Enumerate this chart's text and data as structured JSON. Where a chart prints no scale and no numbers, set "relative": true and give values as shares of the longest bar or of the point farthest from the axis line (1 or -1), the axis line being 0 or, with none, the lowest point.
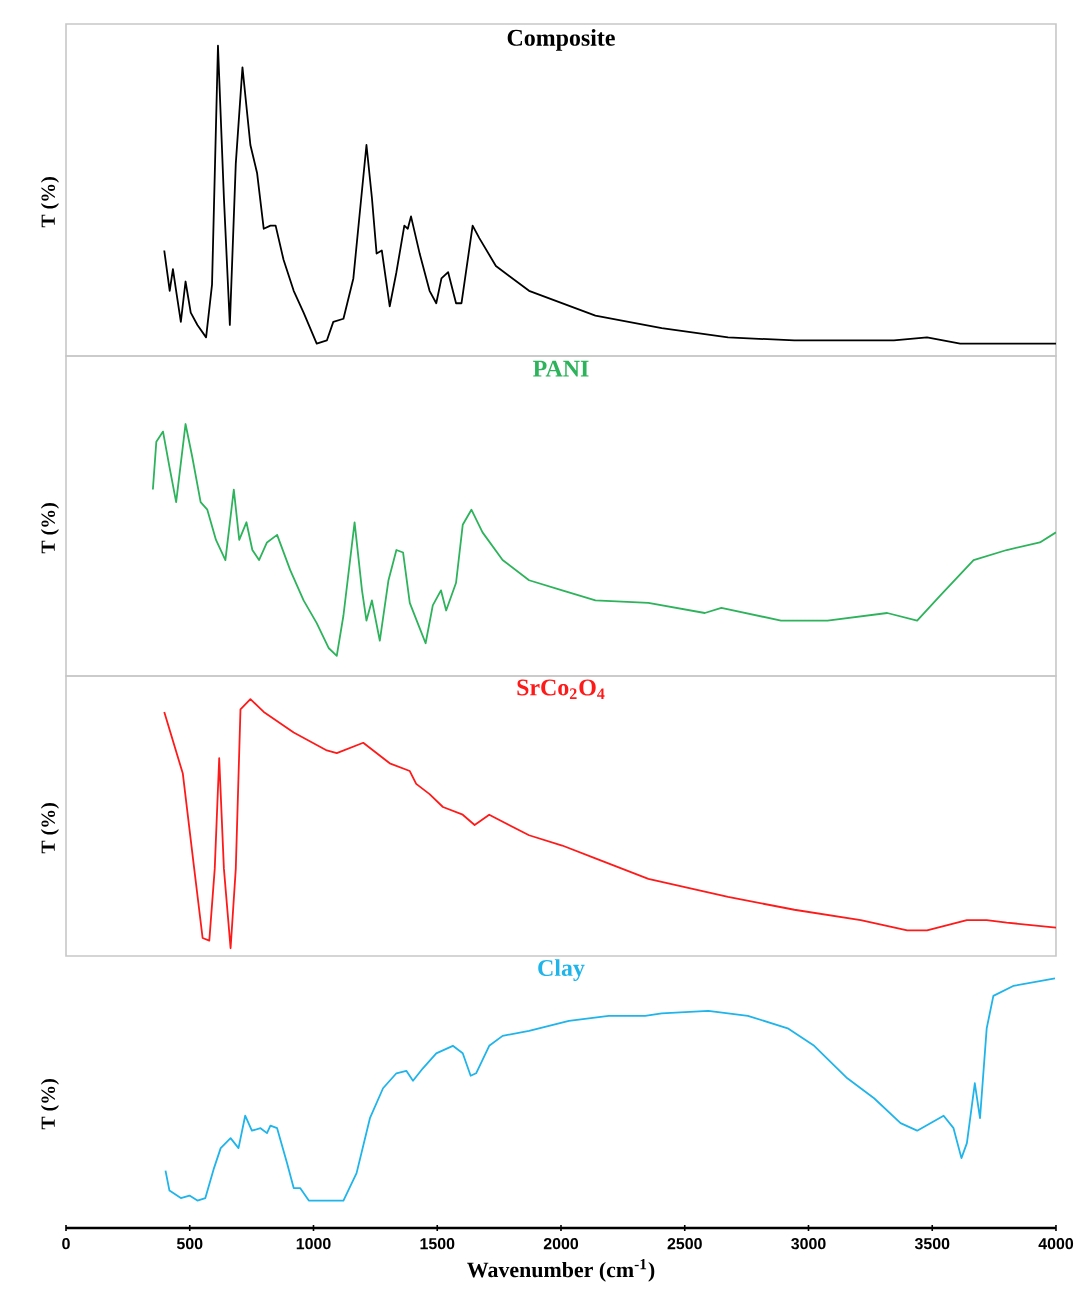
{
  "chart_data": [
    {
      "type": "line",
      "title": "Composite",
      "ylabel": "T (%)",
      "relative": true,
      "xlim": [
        0,
        4000
      ],
      "tick_labels": false,
      "x": [
        397,
        419,
        432,
        445,
        464,
        483,
        504,
        531,
        566,
        590,
        614,
        638,
        662,
        686,
        713,
        745,
        772,
        799,
        826,
        847,
        879,
        920,
        960,
        1013,
        1054,
        1080,
        1121,
        1161,
        1193,
        1214,
        1236,
        1255,
        1276,
        1308,
        1335,
        1367,
        1381,
        1394,
        1429,
        1469,
        1496,
        1517,
        1544,
        1576,
        1598,
        1616,
        1643,
        1670,
        1737,
        1871,
        2139,
        2407,
        2675,
        2943,
        3211,
        3345,
        3479,
        3613,
        3747,
        4000
      ],
      "series": [
        {
          "color": "#000000",
          "values": [
            0.34,
            0.21,
            0.28,
            0.21,
            0.11,
            0.24,
            0.14,
            0.1,
            0.06,
            0.23,
            1.0,
            0.51,
            0.1,
            0.62,
            0.93,
            0.68,
            0.59,
            0.41,
            0.42,
            0.42,
            0.31,
            0.21,
            0.14,
            0.04,
            0.05,
            0.11,
            0.12,
            0.25,
            0.51,
            0.68,
            0.51,
            0.33,
            0.34,
            0.16,
            0.27,
            0.42,
            0.41,
            0.45,
            0.33,
            0.21,
            0.17,
            0.25,
            0.27,
            0.17,
            0.17,
            0.27,
            0.42,
            0.38,
            0.29,
            0.21,
            0.13,
            0.09,
            0.06,
            0.05,
            0.05,
            0.05,
            0.06,
            0.04,
            0.04,
            0.04
          ]
        }
      ]
    },
    {
      "type": "line",
      "title": "PANI",
      "ylabel": "T (%)",
      "relative": true,
      "xlim": [
        0,
        4000
      ],
      "tick_labels": false,
      "x": [
        351,
        365,
        392,
        418,
        445,
        483,
        510,
        544,
        571,
        606,
        644,
        678,
        700,
        729,
        753,
        780,
        812,
        853,
        906,
        960,
        1013,
        1062,
        1094,
        1121,
        1166,
        1196,
        1214,
        1236,
        1268,
        1303,
        1335,
        1362,
        1389,
        1429,
        1453,
        1482,
        1515,
        1536,
        1576,
        1603,
        1638,
        1683,
        1764,
        1871,
        2005,
        2139,
        2353,
        2581,
        2648,
        2889,
        3077,
        3318,
        3439,
        3533,
        3667,
        3801,
        3935,
        4000
      ],
      "series": [
        {
          "color": "#2db35b",
          "values": [
            0.74,
            0.93,
            0.97,
            0.83,
            0.69,
            1.0,
            0.87,
            0.69,
            0.66,
            0.54,
            0.46,
            0.74,
            0.54,
            0.61,
            0.5,
            0.46,
            0.53,
            0.56,
            0.42,
            0.3,
            0.21,
            0.11,
            0.08,
            0.24,
            0.61,
            0.34,
            0.22,
            0.3,
            0.14,
            0.38,
            0.5,
            0.49,
            0.29,
            0.19,
            0.13,
            0.28,
            0.34,
            0.26,
            0.37,
            0.6,
            0.66,
            0.57,
            0.46,
            0.38,
            0.34,
            0.3,
            0.29,
            0.25,
            0.27,
            0.22,
            0.22,
            0.25,
            0.22,
            0.32,
            0.46,
            0.5,
            0.53,
            0.57
          ]
        }
      ]
    },
    {
      "type": "line",
      "title": "SrCo$_{2}$O$_{4}$",
      "ylabel": "T (%)",
      "relative": true,
      "xlim": [
        0,
        4000
      ],
      "tick_labels": false,
      "x": [
        397,
        472,
        518,
        552,
        579,
        601,
        619,
        638,
        665,
        686,
        705,
        745,
        799,
        920,
        1054,
        1094,
        1201,
        1308,
        1389,
        1415,
        1469,
        1523,
        1603,
        1651,
        1710,
        1871,
        2005,
        2139,
        2353,
        2675,
        2943,
        3211,
        3399,
        3479,
        3640,
        3720,
        3801,
        4000
      ],
      "series": [
        {
          "color": "#ff1a1a",
          "values": [
            0.95,
            0.71,
            0.34,
            0.07,
            0.06,
            0.34,
            0.77,
            0.34,
            0.03,
            0.34,
            0.96,
            1.0,
            0.95,
            0.87,
            0.8,
            0.79,
            0.83,
            0.75,
            0.72,
            0.67,
            0.63,
            0.58,
            0.55,
            0.51,
            0.55,
            0.47,
            0.43,
            0.38,
            0.3,
            0.23,
            0.18,
            0.14,
            0.1,
            0.1,
            0.14,
            0.14,
            0.13,
            0.11
          ]
        }
      ]
    },
    {
      "type": "line",
      "title": "Clay",
      "ylabel": "T (%)",
      "xlabel": "Wavenumber (cm$^{-1}$)",
      "relative": true,
      "xlim": [
        0,
        4000
      ],
      "xticks": [
        0,
        500,
        1000,
        1500,
        2000,
        2500,
        3000,
        3500,
        4000
      ],
      "tick_labels": "x",
      "x": [
        402,
        418,
        464,
        499,
        531,
        563,
        598,
        625,
        665,
        697,
        724,
        751,
        786,
        812,
        826,
        853,
        893,
        920,
        946,
        981,
        1067,
        1121,
        1174,
        1228,
        1281,
        1335,
        1375,
        1402,
        1442,
        1496,
        1563,
        1603,
        1635,
        1657,
        1710,
        1764,
        1871,
        2032,
        2193,
        2340,
        2407,
        2595,
        2755,
        2916,
        3023,
        3157,
        3265,
        3372,
        3439,
        3546,
        3586,
        3618,
        3640,
        3672,
        3693,
        3720,
        3747,
        3827,
        3996
      ],
      "series": [
        {
          "color": "#1fb4ea",
          "values": [
            0.23,
            0.15,
            0.12,
            0.13,
            0.11,
            0.12,
            0.24,
            0.32,
            0.36,
            0.32,
            0.45,
            0.39,
            0.4,
            0.38,
            0.41,
            0.4,
            0.26,
            0.16,
            0.16,
            0.11,
            0.11,
            0.11,
            0.22,
            0.44,
            0.56,
            0.62,
            0.63,
            0.59,
            0.64,
            0.7,
            0.73,
            0.7,
            0.61,
            0.62,
            0.73,
            0.77,
            0.79,
            0.83,
            0.85,
            0.85,
            0.86,
            0.87,
            0.85,
            0.8,
            0.73,
            0.6,
            0.52,
            0.42,
            0.39,
            0.45,
            0.4,
            0.28,
            0.34,
            0.58,
            0.44,
            0.8,
            0.93,
            0.97,
            1.0
          ]
        }
      ]
    }
  ]
}
